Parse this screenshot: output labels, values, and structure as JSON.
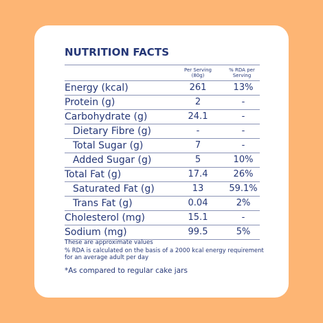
{
  "title": "NUTRITION FACTS",
  "headers": {
    "per_serving": "Per Serving (80g)",
    "rda": "% RDA per Serving"
  },
  "rows": [
    {
      "label": "Energy (kcal)",
      "value": "261",
      "rda": "13%"
    },
    {
      "label": "Protein (g)",
      "value": "2",
      "rda": "-"
    },
    {
      "label": "Carbohydrate (g)",
      "value": "24.1",
      "rda": "-"
    },
    {
      "label": "Dietary Fibre (g)",
      "value": "-",
      "rda": "-"
    },
    {
      "label": "Total Sugar (g)",
      "value": "7",
      "rda": "-"
    },
    {
      "label": "Added Sugar (g)",
      "value": "5",
      "rda": "10%"
    },
    {
      "label": "Total Fat (g)",
      "value": "17.4",
      "rda": "26%"
    },
    {
      "label": "Saturated Fat (g)",
      "value": "13",
      "rda": "59.1%"
    },
    {
      "label": "Trans Fat (g)",
      "value": "0.04",
      "rda": "2%"
    },
    {
      "label": "Cholesterol (mg)",
      "value": "15.1",
      "rda": "-"
    },
    {
      "label": "Sodium (mg)",
      "value": "99.5",
      "rda": "5%"
    }
  ],
  "notes": {
    "approx": "These are approximate values",
    "rda_basis": "%  RDA is calculated on the basis of a 2000 kcal energy requirement for an average adult per day"
  },
  "comparison": "*As compared to regular cake jars",
  "colors": {
    "background": "#fdb574",
    "card": "#ffffff",
    "text": "#253777"
  }
}
